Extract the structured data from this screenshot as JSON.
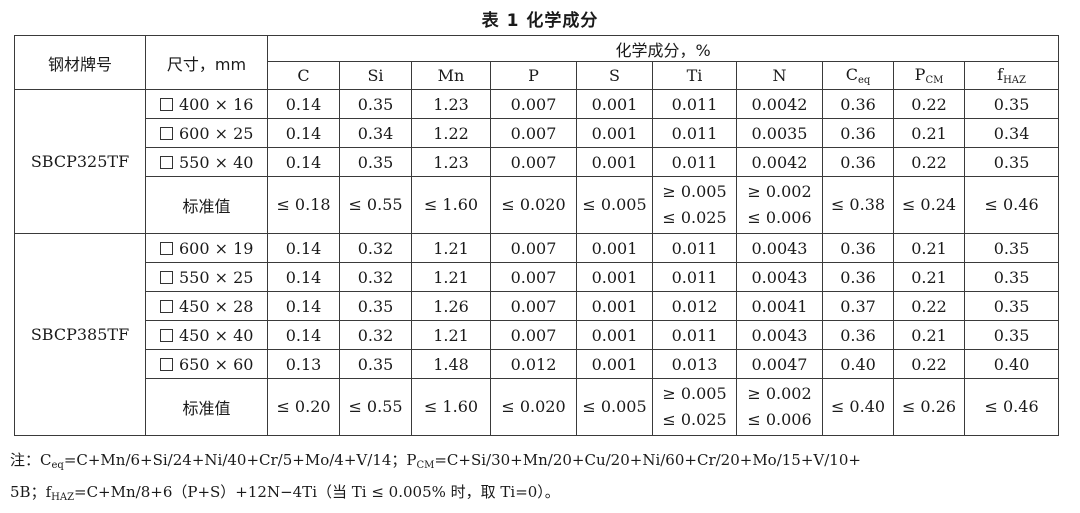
{
  "caption": "表 1  化学成分",
  "header": {
    "grade": "钢材牌号",
    "size": "尺寸，mm",
    "chem_group": "化学成分，%",
    "elements": [
      {
        "main": "C",
        "sub": ""
      },
      {
        "main": "Si",
        "sub": ""
      },
      {
        "main": "Mn",
        "sub": ""
      },
      {
        "main": "P",
        "sub": ""
      },
      {
        "main": "S",
        "sub": ""
      },
      {
        "main": "Ti",
        "sub": ""
      },
      {
        "main": "N",
        "sub": ""
      },
      {
        "main": "C",
        "sub": "eq"
      },
      {
        "main": "P",
        "sub": "CM"
      },
      {
        "main": "f",
        "sub": "HAZ"
      }
    ]
  },
  "groups": [
    {
      "grade": "SBCP325TF",
      "rows": [
        {
          "size": "400 × 16",
          "values": [
            "0.14",
            "0.35",
            "1.23",
            "0.007",
            "0.001",
            "0.011",
            "0.0042",
            "0.36",
            "0.22",
            "0.35"
          ]
        },
        {
          "size": "600 × 25",
          "values": [
            "0.14",
            "0.34",
            "1.22",
            "0.007",
            "0.001",
            "0.011",
            "0.0035",
            "0.36",
            "0.21",
            "0.34"
          ]
        },
        {
          "size": "550 × 40",
          "values": [
            "0.14",
            "0.35",
            "1.23",
            "0.007",
            "0.001",
            "0.011",
            "0.0042",
            "0.36",
            "0.22",
            "0.35"
          ]
        }
      ],
      "standard": {
        "label": "标准值",
        "values": [
          "≤ 0.18",
          "≤ 0.55",
          "≤ 1.60",
          "≤ 0.020",
          "≤ 0.005",
          [
            "≥ 0.005",
            "≤ 0.025"
          ],
          [
            "≥ 0.002",
            "≤ 0.006"
          ],
          "≤ 0.38",
          "≤ 0.24",
          "≤ 0.46"
        ]
      }
    },
    {
      "grade": "SBCP385TF",
      "rows": [
        {
          "size": "600 × 19",
          "values": [
            "0.14",
            "0.32",
            "1.21",
            "0.007",
            "0.001",
            "0.011",
            "0.0043",
            "0.36",
            "0.21",
            "0.35"
          ]
        },
        {
          "size": "550 × 25",
          "values": [
            "0.14",
            "0.32",
            "1.21",
            "0.007",
            "0.001",
            "0.011",
            "0.0043",
            "0.36",
            "0.21",
            "0.35"
          ]
        },
        {
          "size": "450 × 28",
          "values": [
            "0.14",
            "0.35",
            "1.26",
            "0.007",
            "0.001",
            "0.012",
            "0.0041",
            "0.37",
            "0.22",
            "0.35"
          ]
        },
        {
          "size": "450 × 40",
          "values": [
            "0.14",
            "0.32",
            "1.21",
            "0.007",
            "0.001",
            "0.011",
            "0.0043",
            "0.36",
            "0.21",
            "0.35"
          ]
        },
        {
          "size": "650 × 60",
          "values": [
            "0.13",
            "0.35",
            "1.48",
            "0.012",
            "0.001",
            "0.013",
            "0.0047",
            "0.40",
            "0.22",
            "0.40"
          ]
        }
      ],
      "standard": {
        "label": "标准值",
        "values": [
          "≤ 0.20",
          "≤ 0.55",
          "≤ 1.60",
          "≤ 0.020",
          "≤ 0.005",
          [
            "≥ 0.005",
            "≤ 0.025"
          ],
          [
            "≥ 0.002",
            "≤ 0.006"
          ],
          "≤ 0.40",
          "≤ 0.26",
          "≤ 0.46"
        ]
      }
    }
  ],
  "note": {
    "line1": [
      {
        "t": "注：C"
      },
      {
        "sub": "eq"
      },
      {
        "t": "=C+Mn/6+Si/24+Ni/40+Cr/5+Mo/4+V/14；P"
      },
      {
        "sub": "CM"
      },
      {
        "t": "=C+Si/30+Mn/20+Cu/20+Ni/60+Cr/20+Mo/15+V/10+"
      }
    ],
    "line2": [
      {
        "t": "5B；f"
      },
      {
        "sub": "HAZ"
      },
      {
        "t": "=C+Mn/8+6（P+S）+12N−4Ti（当 Ti ≤ 0.005% 时，取 Ti=0）。"
      }
    ]
  }
}
